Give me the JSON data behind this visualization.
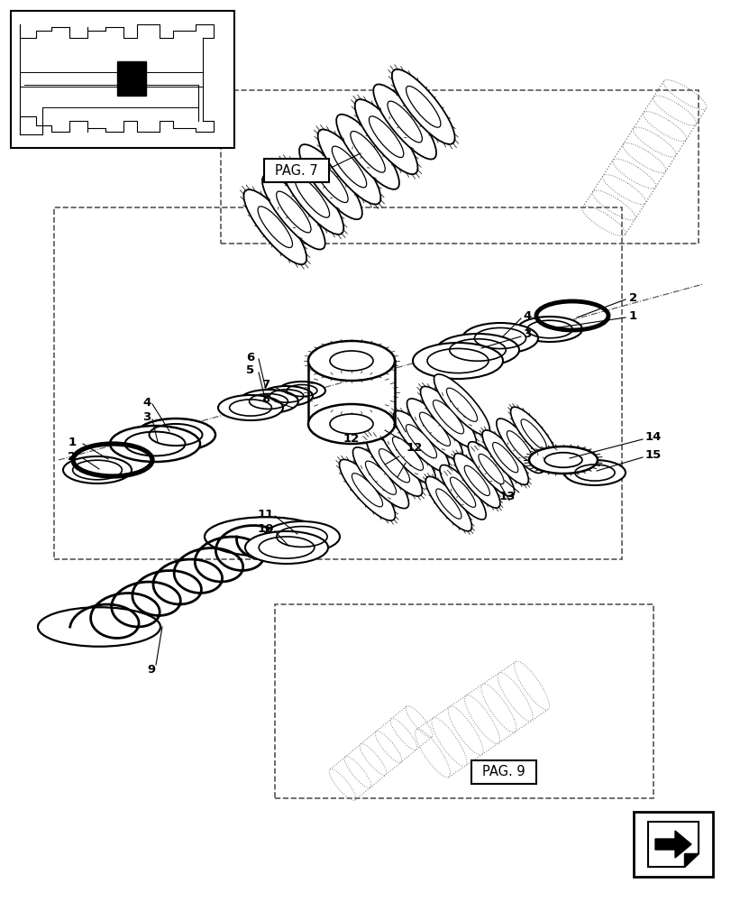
{
  "bg_color": "#ffffff",
  "line_color": "#000000",
  "pag7_label": "PAG. 7",
  "pag9_label": "PAG. 9",
  "part_numbers": [
    "1",
    "2",
    "3",
    "4",
    "5",
    "6",
    "7",
    "8",
    "9",
    "10",
    "11",
    "12",
    "13",
    "14",
    "15"
  ]
}
